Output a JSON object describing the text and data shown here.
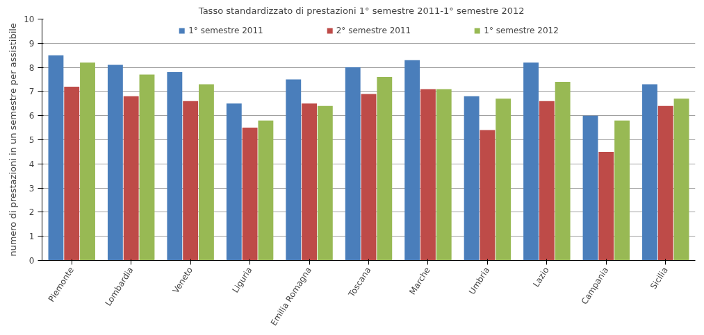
{
  "chart_data": {
    "type": "bar",
    "title": "Tasso standardizzato di prestazioni      1° semestre 2011-1° semestre 2012",
    "ylabel": "numero di prestazioni in un semestre per assistibile",
    "categories": [
      "Piemonte",
      "Lombardia",
      "Veneto",
      "Liguria",
      "Emilia Romagna",
      "Toscana",
      "Marche",
      "Umbria",
      "Lazio",
      "Campania",
      "Sicilia"
    ],
    "series": [
      {
        "name": "1° semestre 2011",
        "color": "#4a7ebb",
        "values": [
          8.5,
          8.1,
          7.8,
          6.5,
          7.5,
          8.0,
          8.3,
          6.8,
          8.2,
          6.0,
          7.3
        ]
      },
      {
        "name": "2° semestre 2011",
        "color": "#be4b48",
        "values": [
          7.2,
          6.8,
          6.6,
          5.5,
          6.5,
          6.9,
          7.1,
          5.4,
          6.6,
          4.5,
          6.4
        ]
      },
      {
        "name": "1° semestre 2012",
        "color": "#98b954",
        "values": [
          8.2,
          7.7,
          7.3,
          5.8,
          6.4,
          7.6,
          7.1,
          6.7,
          7.4,
          5.8,
          6.7
        ]
      }
    ],
    "ylim": [
      0,
      10
    ],
    "yticks": [
      0,
      1,
      2,
      3,
      4,
      5,
      6,
      7,
      8,
      9,
      10
    ],
    "grid": "y",
    "legend": "top"
  }
}
